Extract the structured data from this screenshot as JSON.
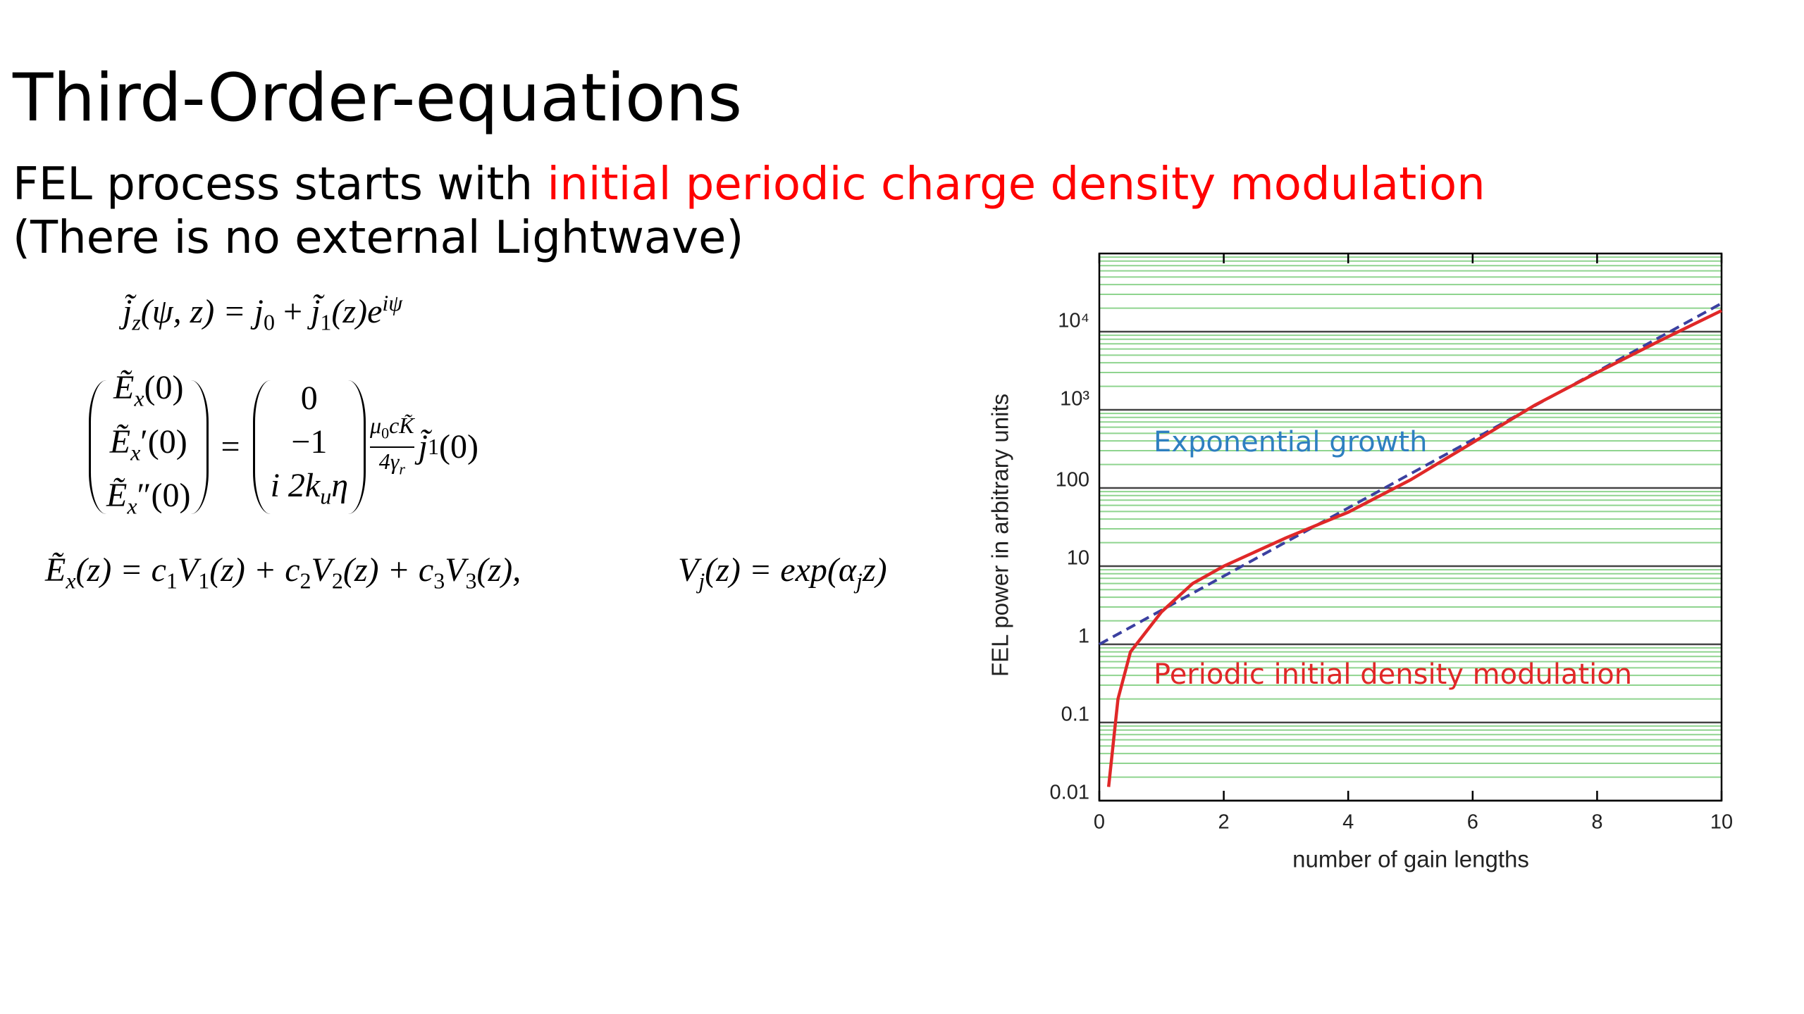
{
  "title": "Third-Order-equations",
  "subtitle": [
    "FEL process starts with ",
    "initial periodic charge density modulation"
  ],
  "note": "(There is no external Lightwave)",
  "equations": {
    "current": [
      "j̃",
      "z",
      "(ψ, z) = ",
      "j",
      "0",
      " + ",
      "j̃",
      "1",
      "(z)e",
      "iψ"
    ],
    "matrix_left": [
      [
        "Ẽ",
        "x",
        "(0)"
      ],
      [
        "Ẽ",
        "x",
        "′(0)"
      ],
      [
        "Ẽ",
        "x",
        "″(0)"
      ]
    ],
    "equals": "=",
    "matrix_right": [
      [
        "0"
      ],
      [
        "−1"
      ],
      [
        "i 2k",
        "u",
        "η"
      ]
    ],
    "fraction_top": [
      "μ",
      "0",
      "cK̃"
    ],
    "fraction_bottom": [
      "4γ",
      "r"
    ],
    "factor": [
      "j̃",
      "1",
      "(0)"
    ],
    "field": [
      "Ẽ",
      "x",
      "(z) = c",
      "1",
      "V",
      "1",
      "(z) + c",
      "2",
      "V",
      "2",
      "(z) + c",
      "3",
      "V",
      "3",
      "(z),"
    ],
    "mode": [
      "V",
      "j",
      "(z) = exp(α",
      "j",
      "z)"
    ]
  },
  "chart_data": {
    "type": "line",
    "log_y": true,
    "xlabel": "number of gain lengths",
    "ylabel": "FEL power in arbitrary units",
    "xlim": [
      0,
      10
    ],
    "xticks": [
      0,
      2,
      4,
      6,
      8,
      10
    ],
    "ylim": [
      0.01,
      100000
    ],
    "yticks": [
      0.01,
      0.1,
      1,
      10,
      100,
      {
        "value": 1000,
        "label": "10³"
      },
      {
        "value": 10000,
        "label": "10⁴"
      }
    ],
    "yticks_minor": [
      0.02,
      0.03,
      0.04,
      0.05,
      0.06,
      0.07,
      0.08,
      0.09,
      0.2,
      0.3,
      0.4,
      0.5,
      0.6,
      0.7,
      0.8,
      0.9,
      2,
      3,
      4,
      5,
      6,
      7,
      8,
      9,
      20,
      30,
      40,
      50,
      60,
      70,
      80,
      90,
      200,
      300,
      400,
      500,
      600,
      700,
      800,
      900,
      2000,
      3000,
      4000,
      5000,
      6000,
      7000,
      8000,
      9000,
      20000,
      30000,
      40000,
      50000,
      60000,
      70000,
      80000,
      90000
    ],
    "grid": true,
    "grid_color": "#444444",
    "minor_grid_color": "#8fd48f",
    "series": [
      {
        "color": "#3b40a0",
        "dashed": true,
        "x": [
          0,
          10
        ],
        "values": [
          1,
          23000
        ]
      },
      {
        "color": "#e02828",
        "dashed": false,
        "x": [
          0.15,
          0.3,
          0.5,
          1,
          1.5,
          2,
          3,
          4,
          5,
          6,
          7,
          8,
          9,
          10
        ],
        "values": [
          0.015,
          0.2,
          0.8,
          2.6,
          6,
          10,
          23,
          49,
          127,
          380,
          1150,
          3000,
          7600,
          18600
        ]
      }
    ],
    "annotations": [
      {
        "text": "Exponential growth",
        "color": "#2e7fc0"
      },
      {
        "text": "Periodic initial density modulation",
        "color": "#e02828"
      }
    ]
  }
}
